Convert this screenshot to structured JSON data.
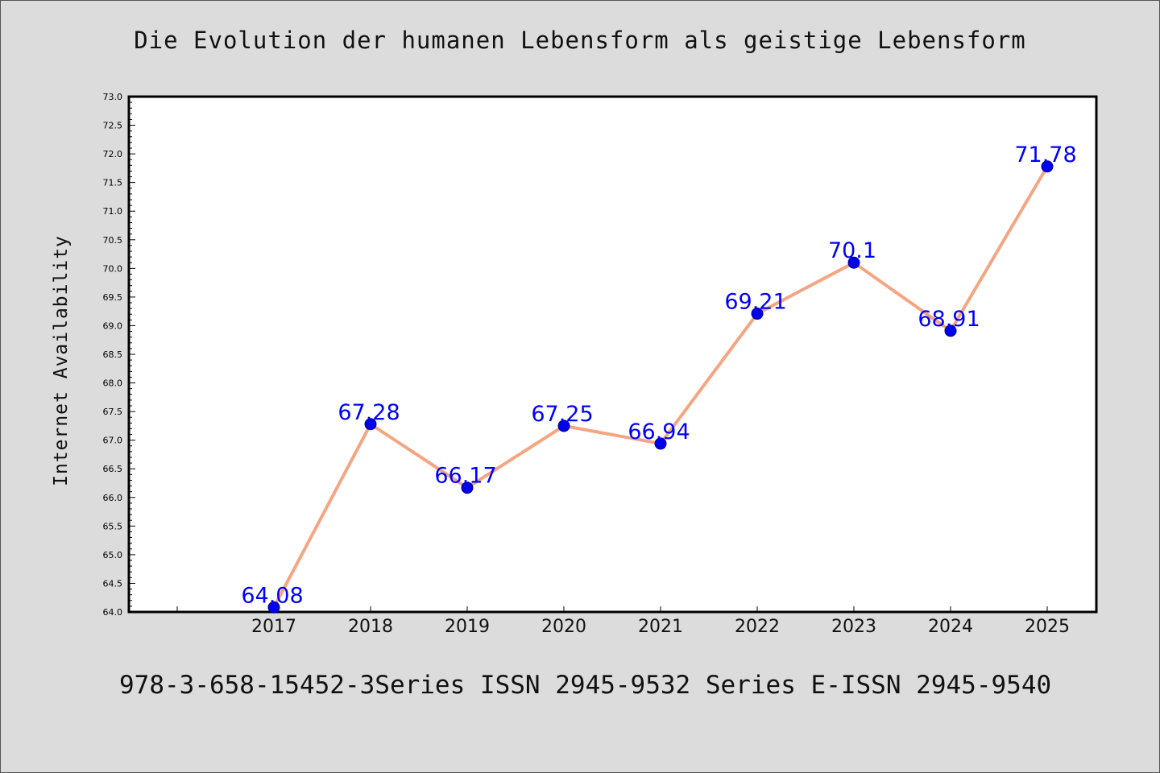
{
  "chart_data": {
    "type": "line",
    "title": "Die Evolution der humanen Lebensform als geistige Lebensform",
    "xlabel": "",
    "ylabel": "Internet Availability",
    "categories": [
      "2017",
      "2018",
      "2019",
      "2020",
      "2021",
      "2022",
      "2023",
      "2024",
      "2025"
    ],
    "series": [
      {
        "values": [
          64.08,
          67.28,
          66.17,
          67.25,
          66.94,
          69.21,
          70.1,
          68.91,
          71.78
        ],
        "labels": [
          "64.08",
          "67.28",
          "66.17",
          "67.25",
          "66.94",
          "69.21",
          "70.1",
          "68.91",
          "71.78"
        ],
        "line_color": "#f4a582",
        "marker_color": "#0000ee"
      }
    ],
    "ylim": [
      64.0,
      73.0
    ],
    "yticks": [
      "64.0",
      "64.5",
      "65.0",
      "65.5",
      "66.0",
      "66.5",
      "67.0",
      "67.5",
      "68.0",
      "68.5",
      "69.0",
      "69.5",
      "70.0",
      "70.5",
      "71.0",
      "71.5",
      "72.0",
      "72.5",
      "73.0"
    ],
    "data_label_color": "#0000ff",
    "grid": false,
    "legend": "none"
  },
  "footer": "978-3-658-15452-3Series ISSN 2945-9532 Series E-ISSN 2945-9540",
  "colors": {
    "background": "#dcdcdc",
    "plot_background": "#ffffff"
  }
}
